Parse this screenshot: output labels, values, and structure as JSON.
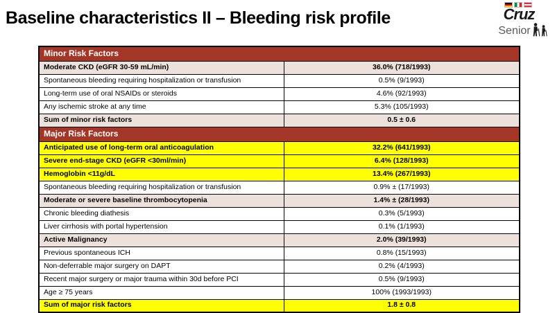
{
  "slide": {
    "title": "Baseline characteristics II – Bleeding risk profile"
  },
  "logo": {
    "brand": "Cruz",
    "subbrand": "Senior",
    "flags": [
      "germany-flag",
      "italy-flag",
      "austria-flag"
    ],
    "people_icon": "two-seniors-walking-icon"
  },
  "colors": {
    "section_header_bg": "#A33627",
    "section_header_text": "#FFFFFF",
    "highlight_pink": "#EDE1DC",
    "highlight_yellow": "#FFFF00",
    "table_border": "#000000"
  },
  "table": {
    "sections": [
      {
        "header": "Minor Risk Factors",
        "rows": [
          {
            "label": "Moderate CKD (eGFR 30-59 mL/min)",
            "value": "36.0% (718/1993)",
            "highlight": "pink",
            "bold": true
          },
          {
            "label": "Spontaneous bleeding requiring hospitalization or transfusion",
            "value": "0.5% (9/1993)",
            "highlight": "none",
            "bold": false
          },
          {
            "label": "Long-term use of oral NSAIDs or steroids",
            "value": "4.6% (92/1993)",
            "highlight": "none",
            "bold": false
          },
          {
            "label": "Any ischemic stroke at any time",
            "value": "5.3% (105/1993)",
            "highlight": "none",
            "bold": false
          },
          {
            "label": "Sum of minor risk factors",
            "value": "0.5 ± 0.6",
            "highlight": "pink",
            "bold": true
          }
        ]
      },
      {
        "header": "Major Risk Factors",
        "rows": [
          {
            "label": "Anticipated use of long-term oral anticoagulation",
            "value": "32.2% (641/1993)",
            "highlight": "yellow",
            "bold": true
          },
          {
            "label": "Severe end-stage CKD (eGFR <30ml/min)",
            "value": "6.4% (128/1993)",
            "highlight": "yellow",
            "bold": true
          },
          {
            "label": "Hemoglobin <11g/dL",
            "value": "13.4% (267/1993)",
            "highlight": "yellow",
            "bold": true
          },
          {
            "label": "Spontaneous bleeding requiring hospitalization or transfusion",
            "value": "0.9% ± (17/1993)",
            "highlight": "none",
            "bold": false
          },
          {
            "label": "Moderate or severe baseline thrombocytopenia",
            "value": "1.4% ± (28/1993)",
            "highlight": "pink",
            "bold": true
          },
          {
            "label": "Chronic bleeding diathesis",
            "value": "0.3% (5/1993)",
            "highlight": "none",
            "bold": false
          },
          {
            "label": "Liver cirrhosis with portal hypertension",
            "value": "0.1% (1/1993)",
            "highlight": "none",
            "bold": false
          },
          {
            "label": "Active Malignancy",
            "value": "2.0% (39/1993)",
            "highlight": "pink",
            "bold": true
          },
          {
            "label": "Previous spontaneous ICH",
            "value": "0.8% (15/1993)",
            "highlight": "none",
            "bold": false
          },
          {
            "label": "Non-deferrable major surgery on DAPT",
            "value": "0.2% (4/1993)",
            "highlight": "none",
            "bold": false
          },
          {
            "label": "Recent major surgery or major trauma within 30d before PCI",
            "value": "0.5% (9/1993)",
            "highlight": "none",
            "bold": false
          },
          {
            "label": "Age ≥ 75 years",
            "value": "100% (1993/1993)",
            "highlight": "none",
            "bold": false
          },
          {
            "label": "Sum of major risk factors",
            "value": "1.8 ± 0.8",
            "highlight": "yellow",
            "bold": true
          }
        ]
      }
    ]
  }
}
